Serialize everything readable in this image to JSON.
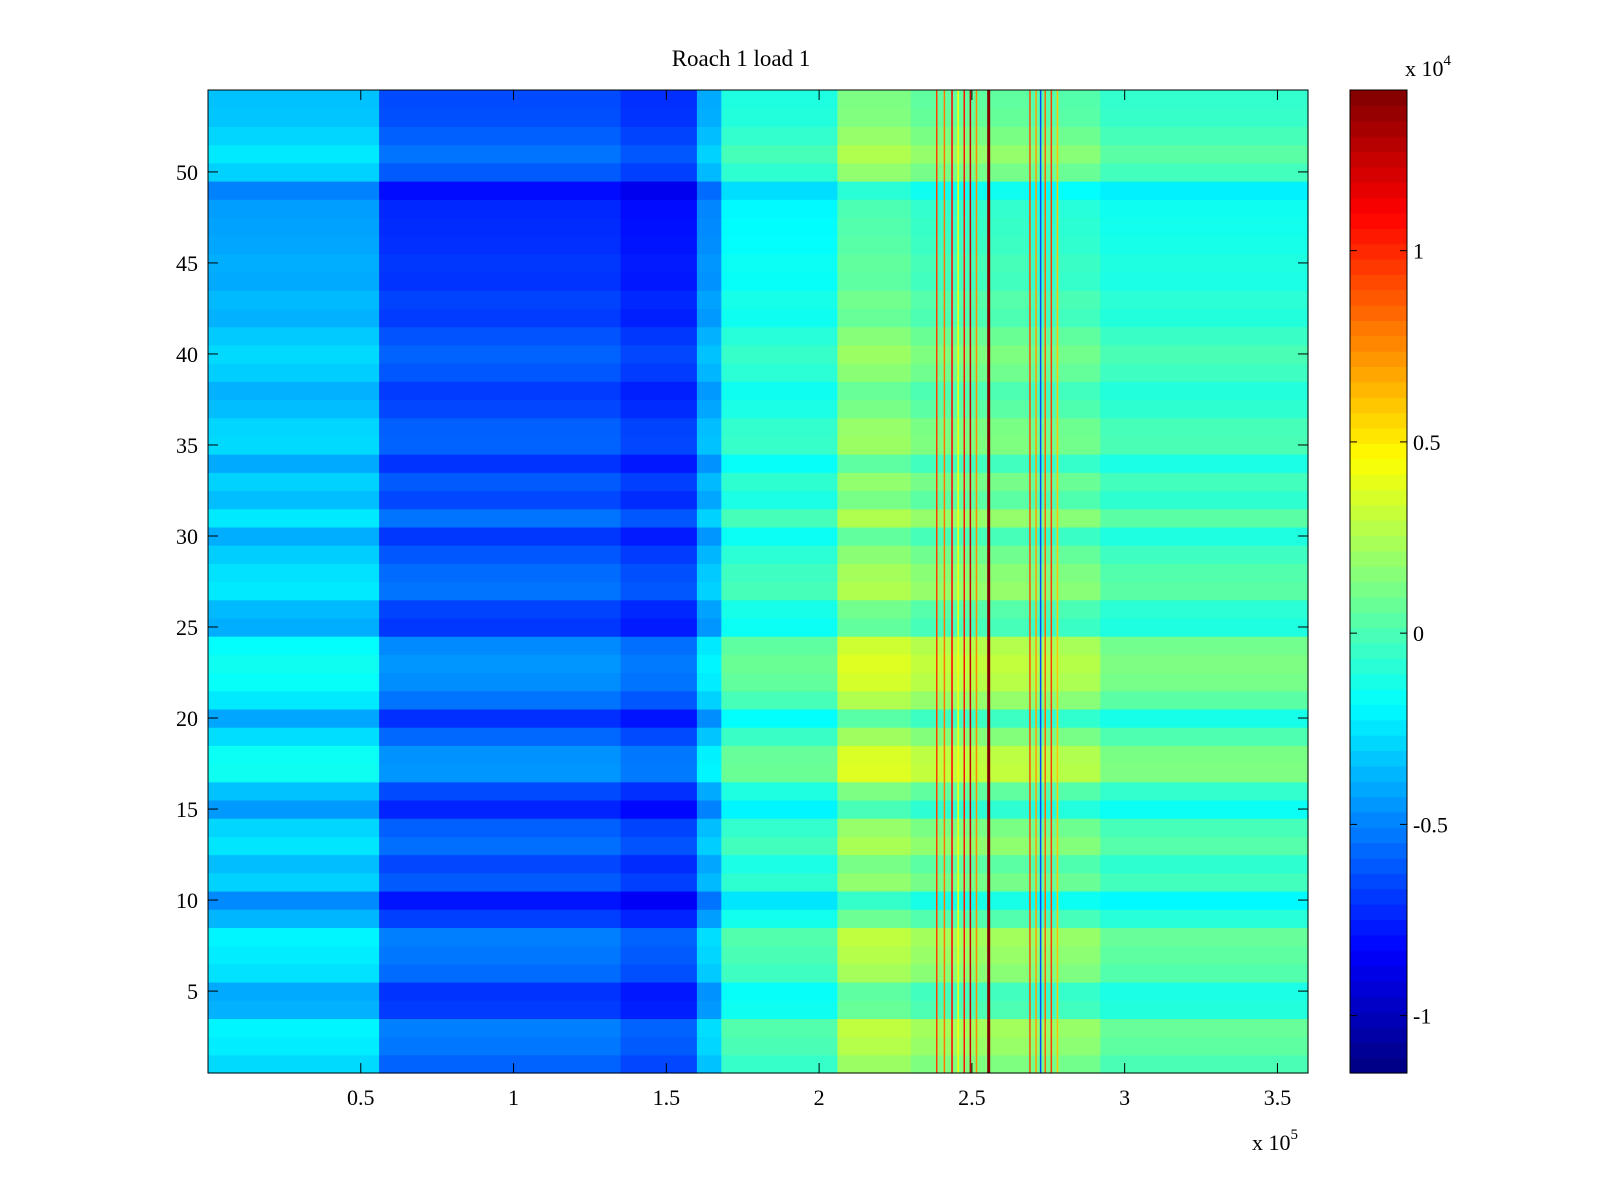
{
  "chart_data": {
    "type": "heatmap",
    "title": "Roach 1 load 1",
    "xlabel": "",
    "ylabel": "",
    "colormap": "jet",
    "x_range": [
      0,
      360000
    ],
    "y_range": [
      0.5,
      54.5
    ],
    "rows": 54,
    "x_multiplier": {
      "base": "x 10",
      "exponent": "5"
    },
    "x_ticks": [
      {
        "value": 50000,
        "label": "0.5"
      },
      {
        "value": 100000,
        "label": "1"
      },
      {
        "value": 150000,
        "label": "1.5"
      },
      {
        "value": 200000,
        "label": "2"
      },
      {
        "value": 250000,
        "label": "2.5"
      },
      {
        "value": 300000,
        "label": "3"
      },
      {
        "value": 350000,
        "label": "3.5"
      }
    ],
    "y_ticks": [
      {
        "value": 5,
        "label": "5"
      },
      {
        "value": 10,
        "label": "10"
      },
      {
        "value": 15,
        "label": "15"
      },
      {
        "value": 20,
        "label": "20"
      },
      {
        "value": 25,
        "label": "25"
      },
      {
        "value": 30,
        "label": "30"
      },
      {
        "value": 35,
        "label": "35"
      },
      {
        "value": 40,
        "label": "40"
      },
      {
        "value": 45,
        "label": "45"
      },
      {
        "value": 50,
        "label": "50"
      }
    ],
    "colorbar": {
      "range": [
        -11500,
        14200
      ],
      "multiplier": {
        "base": "x 10",
        "exponent": "4"
      },
      "ticks": [
        {
          "value": -10000,
          "label": "-1"
        },
        {
          "value": -5000,
          "label": "-0.5"
        },
        {
          "value": 0,
          "label": "0"
        },
        {
          "value": 5000,
          "label": "0.5"
        },
        {
          "value": 10000,
          "label": "1"
        }
      ]
    },
    "x_bands": [
      {
        "x0": 0,
        "x1": 56000,
        "value": -2600
      },
      {
        "x0": 56000,
        "x1": 135000,
        "value": -5600
      },
      {
        "x0": 135000,
        "x1": 160000,
        "value": -6300
      },
      {
        "x0": 160000,
        "x1": 168000,
        "value": -3200
      },
      {
        "x0": 168000,
        "x1": 206000,
        "value": -300
      },
      {
        "x0": 206000,
        "x1": 230000,
        "value": 2300
      },
      {
        "x0": 230000,
        "x1": 268000,
        "value": 1600
      },
      {
        "x0": 268000,
        "x1": 292000,
        "value": 1300
      },
      {
        "x0": 292000,
        "x1": 360000,
        "value": 200
      }
    ],
    "row_offsets": [
      {
        "row": 1,
        "value": -200
      },
      {
        "row": 2,
        "value": 300
      },
      {
        "row": 3,
        "value": 500
      },
      {
        "row": 4,
        "value": -1200
      },
      {
        "row": 5,
        "value": -1400
      },
      {
        "row": 6,
        "value": 0
      },
      {
        "row": 7,
        "value": 300
      },
      {
        "row": 8,
        "value": 500
      },
      {
        "row": 9,
        "value": -1100
      },
      {
        "row": 10,
        "value": -2200
      },
      {
        "row": 11,
        "value": -400
      },
      {
        "row": 12,
        "value": -900
      },
      {
        "row": 13,
        "value": 100
      },
      {
        "row": 14,
        "value": -300
      },
      {
        "row": 15,
        "value": -1800
      },
      {
        "row": 16,
        "value": -800
      },
      {
        "row": 17,
        "value": 1100
      },
      {
        "row": 18,
        "value": 1000
      },
      {
        "row": 19,
        "value": -100
      },
      {
        "row": 20,
        "value": -1500
      },
      {
        "row": 21,
        "value": 200
      },
      {
        "row": 22,
        "value": 900
      },
      {
        "row": 23,
        "value": 1100
      },
      {
        "row": 24,
        "value": 800
      },
      {
        "row": 25,
        "value": -1300
      },
      {
        "row": 26,
        "value": -1000
      },
      {
        "row": 27,
        "value": 200
      },
      {
        "row": 28,
        "value": 0
      },
      {
        "row": 29,
        "value": -500
      },
      {
        "row": 30,
        "value": -1300
      },
      {
        "row": 31,
        "value": 200
      },
      {
        "row": 32,
        "value": -900
      },
      {
        "row": 33,
        "value": -400
      },
      {
        "row": 34,
        "value": -1400
      },
      {
        "row": 35,
        "value": -200
      },
      {
        "row": 36,
        "value": -300
      },
      {
        "row": 37,
        "value": -900
      },
      {
        "row": 38,
        "value": -1200
      },
      {
        "row": 39,
        "value": -500
      },
      {
        "row": 40,
        "value": -200
      },
      {
        "row": 41,
        "value": -600
      },
      {
        "row": 42,
        "value": -1200
      },
      {
        "row": 43,
        "value": -1000
      },
      {
        "row": 44,
        "value": -1400
      },
      {
        "row": 45,
        "value": -1300
      },
      {
        "row": 46,
        "value": -1500
      },
      {
        "row": 47,
        "value": -1600
      },
      {
        "row": 48,
        "value": -1700
      },
      {
        "row": 49,
        "value": -2400
      },
      {
        "row": 50,
        "value": -400
      },
      {
        "row": 51,
        "value": 200
      },
      {
        "row": 52,
        "value": -300
      },
      {
        "row": 53,
        "value": -700
      },
      {
        "row": 54,
        "value": -800
      }
    ],
    "spikes": [
      {
        "x": 238500,
        "value": 9500
      },
      {
        "x": 241000,
        "value": 8000
      },
      {
        "x": 243500,
        "value": 11000
      },
      {
        "x": 245500,
        "value": 4500
      },
      {
        "x": 247500,
        "value": 10500
      },
      {
        "x": 249500,
        "value": 12500
      },
      {
        "x": 251500,
        "value": 7500
      },
      {
        "x": 255500,
        "value": 14200
      },
      {
        "x": 269000,
        "value": 9000
      },
      {
        "x": 271000,
        "value": 7000
      },
      {
        "x": 272500,
        "value": -6500
      },
      {
        "x": 274000,
        "value": 8500
      },
      {
        "x": 276000,
        "value": 9500
      },
      {
        "x": 278000,
        "value": 6000
      }
    ]
  }
}
